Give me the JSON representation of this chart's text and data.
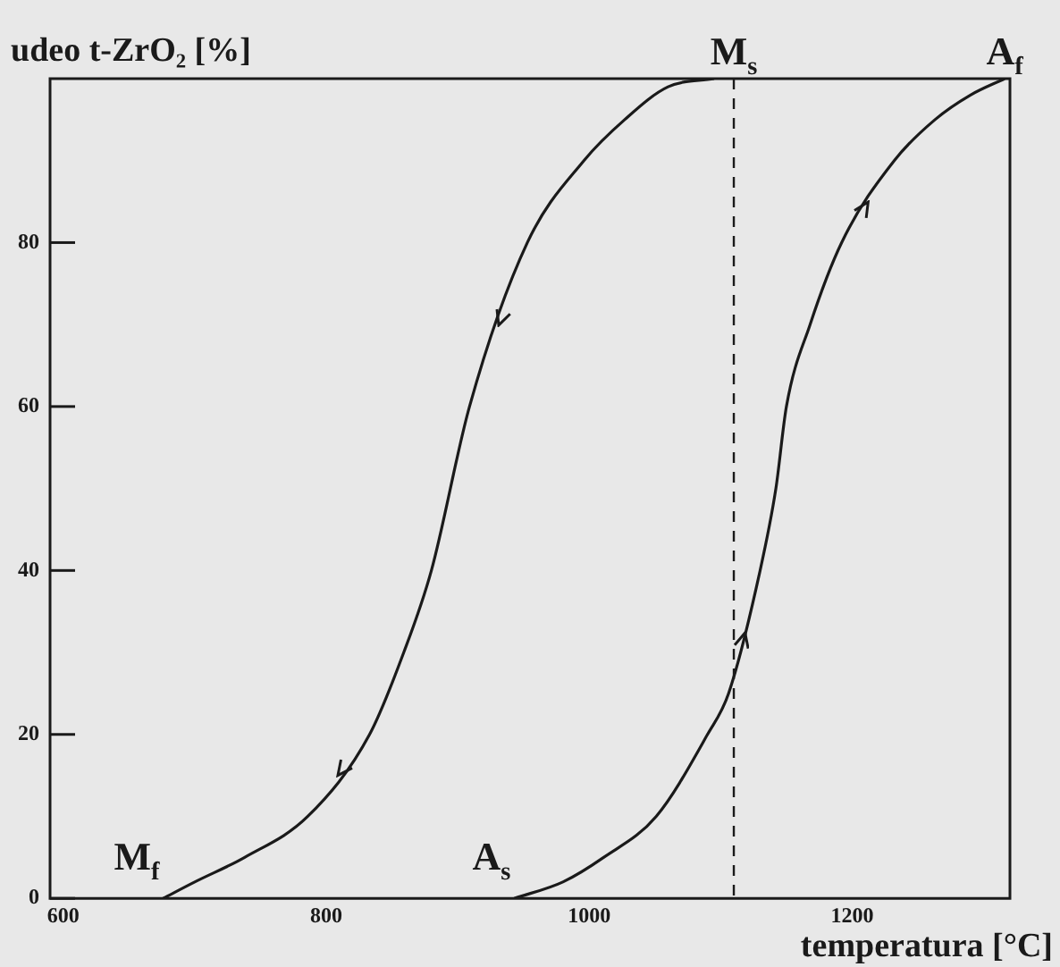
{
  "chart_data": {
    "type": "line",
    "ylabel": "udeo t-ZrO₂ [%]",
    "xlabel": "temperatura [°C]",
    "series": [
      {
        "color": "#1a1a1a",
        "x": [
          1095,
          1060,
          1027,
          996,
          953,
          909,
          880,
          859,
          833,
          786,
          738,
          700,
          676
        ],
        "values": [
          100,
          99,
          95,
          90,
          80,
          60,
          40,
          30,
          20,
          10,
          5,
          2,
          0
        ]
      },
      {
        "color": "#1a1a1a",
        "x": [
          943,
          980,
          1011,
          1051,
          1090,
          1106,
          1130,
          1142,
          1150,
          1168,
          1192,
          1232,
          1263,
          1290,
          1316
        ],
        "values": [
          0,
          2,
          5,
          10,
          20,
          25,
          40,
          50,
          60,
          70,
          80,
          90,
          95,
          98,
          100
        ]
      }
    ],
    "xlim": [
      590,
      1320
    ],
    "ylim": [
      0,
      100
    ],
    "xticks": [
      600,
      800,
      1000,
      1200
    ],
    "yticks": [
      0,
      20,
      40,
      60,
      80
    ],
    "ref_lines": [
      {
        "axis": "x",
        "value": 1110,
        "label": "M$_{s}$",
        "line_style": "dashed",
        "color": "#1a1a1a"
      }
    ],
    "annotations": [
      {
        "text": "M$_{f}$",
        "x": 676,
        "y": 0
      },
      {
        "text": "A$_{s}$",
        "x": 943,
        "y": 0
      },
      {
        "text": "A$_{f}$",
        "x": 1316,
        "y": 100
      }
    ],
    "grid": false,
    "legend": false,
    "marker": "none",
    "line_style": "solid"
  }
}
